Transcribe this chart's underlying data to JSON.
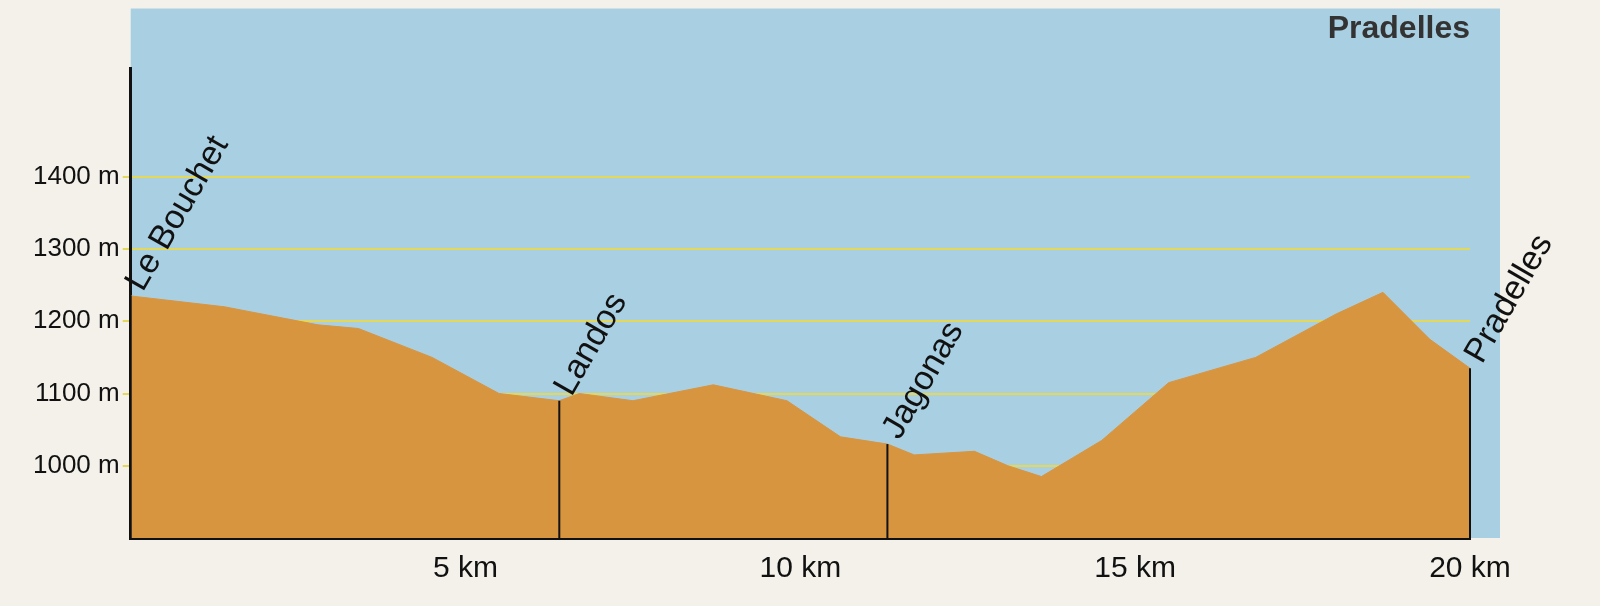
{
  "chart_data": {
    "type": "area",
    "title": "Pradelles",
    "x": [
      0,
      1.4,
      2.8,
      3.4,
      4.5,
      5.5,
      6.4,
      6.7,
      7.5,
      8.7,
      9.8,
      10.6,
      11.3,
      11.7,
      12.6,
      13.1,
      13.6,
      14.5,
      15.5,
      16.8,
      18,
      18.7,
      19.4,
      20
    ],
    "series": [
      {
        "color": "#d8953f",
        "values": [
          1235,
          1220,
          1195,
          1190,
          1150,
          1100,
          1090,
          1100,
          1090,
          1112,
          1090,
          1040,
          1030,
          1015,
          1020,
          1000,
          985,
          1035,
          1115,
          1150,
          1210,
          1240,
          1175,
          1135
        ]
      }
    ],
    "xlim": [
      0,
      20
    ],
    "xticks": [
      {
        "value": 5,
        "label": "5 km"
      },
      {
        "value": 10,
        "label": "10 km"
      },
      {
        "value": 15,
        "label": "15 km"
      },
      {
        "value": 20,
        "label": "20 km"
      }
    ],
    "ylim": [
      900,
      1550
    ],
    "yticks": [
      {
        "value": 1000,
        "label": "1000 m"
      },
      {
        "value": 1100,
        "label": "1100 m"
      },
      {
        "value": 1200,
        "label": "1200 m"
      },
      {
        "value": 1300,
        "label": "1300 m"
      },
      {
        "value": 1400,
        "label": "1400 m"
      }
    ],
    "grid": "y",
    "legend": false,
    "ref_lines": [
      {
        "axis": "x",
        "value": 0,
        "label": "Le Bouchet"
      },
      {
        "axis": "x",
        "value": 6.4,
        "label": "Landos"
      },
      {
        "axis": "x",
        "value": 11.3,
        "label": "Jagonas"
      },
      {
        "axis": "x",
        "value": 20,
        "label": "Pradelles"
      }
    ]
  }
}
